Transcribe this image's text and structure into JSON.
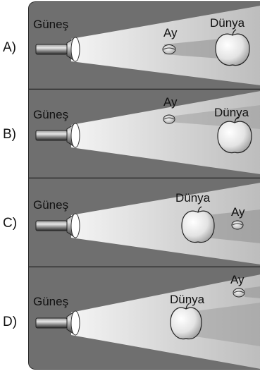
{
  "labels": {
    "sun": "Güneş",
    "moon": "Ay",
    "earth": "Dünya"
  },
  "options": [
    {
      "letter": "A)"
    },
    {
      "letter": "B)"
    },
    {
      "letter": "C)"
    },
    {
      "letter": "D)"
    }
  ]
}
